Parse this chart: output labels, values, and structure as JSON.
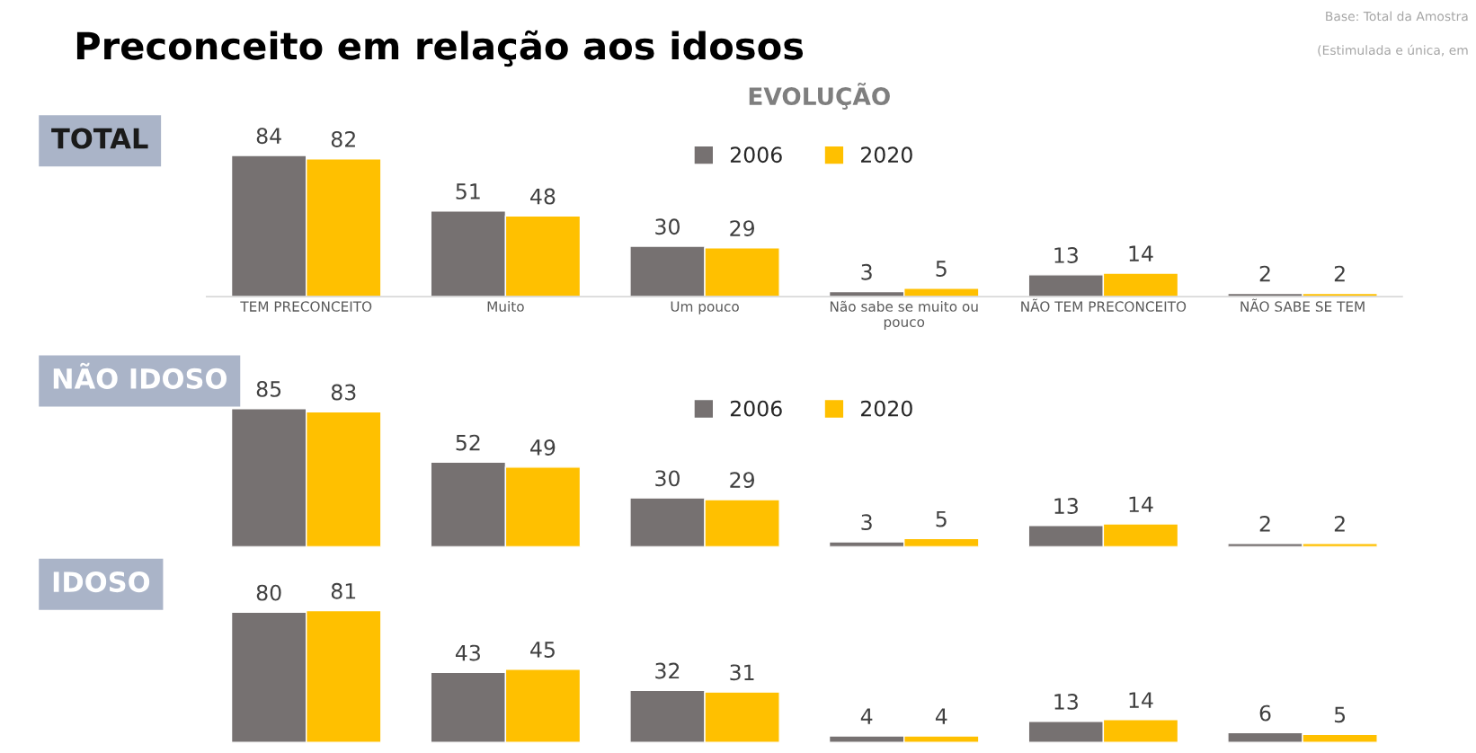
{
  "chart_data": [
    {
      "type": "bar",
      "title": "Preconceito em relação aos idosos",
      "subtitle": "EVOLUÇÃO",
      "ylabel": "TOTAL",
      "annotations": [
        "Base: Total da Amostra",
        "(Estimulada e única, em"
      ],
      "categories": [
        "TEM PRECONCEITO",
        "Muito",
        "Um pouco",
        "Não sabe se muito ou\npouco",
        "NÃO TEM PRECONCEITO",
        "NÃO SABE SE TEM"
      ],
      "series": [
        {
          "name": "2006",
          "color": "#767171",
          "values": [
            84,
            51,
            30,
            3,
            13,
            2
          ]
        },
        {
          "name": "2020",
          "color": "#ffc000",
          "values": [
            82,
            48,
            29,
            5,
            14,
            2
          ]
        }
      ],
      "data_labels": true,
      "legend": "top",
      "tick_labels": "x",
      "grid": false
    },
    {
      "type": "bar",
      "ylabel": "NÃO IDOSO",
      "categories": [
        null,
        null,
        null,
        null,
        null,
        null
      ],
      "series": [
        {
          "name": "2006",
          "color": "#767171",
          "values": [
            85,
            52,
            30,
            3,
            13,
            2
          ]
        },
        {
          "name": "2020",
          "color": "#ffc000",
          "values": [
            83,
            49,
            29,
            5,
            14,
            2
          ]
        }
      ],
      "data_labels": true,
      "legend": "top",
      "tick_labels": false,
      "grid": false
    },
    {
      "type": "bar",
      "ylabel": "IDOSO",
      "categories": [
        null,
        null,
        null,
        null,
        null,
        null
      ],
      "series": [
        {
          "color": "#767171",
          "values": [
            80,
            43,
            32,
            4,
            13,
            6
          ]
        },
        {
          "color": "#ffc000",
          "values": [
            81,
            45,
            31,
            4,
            14,
            5
          ]
        }
      ],
      "data_labels": true,
      "tick_labels": false,
      "grid": false
    }
  ]
}
